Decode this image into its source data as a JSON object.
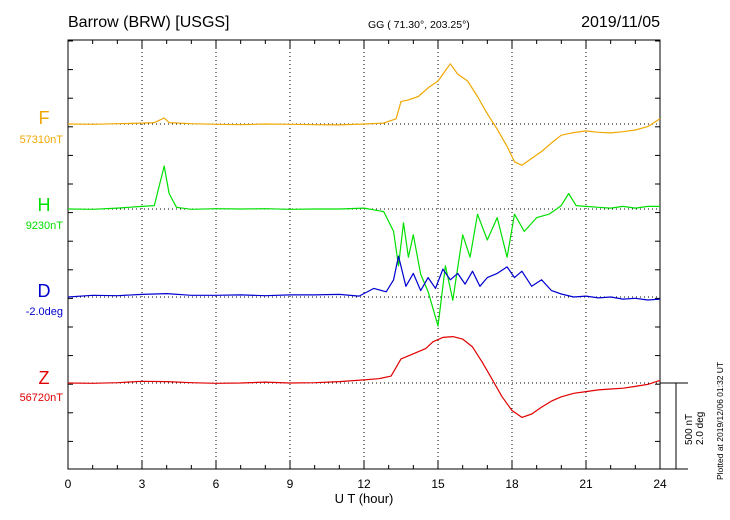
{
  "header": {
    "station": "Barrow (BRW)  [USGS]",
    "coords": "GG ( 71.30°, 203.25°)",
    "date": "2019/11/05"
  },
  "footer": {
    "plotted": "Plotted at 2019/12/06 01:32 UT",
    "scale_nt": "500 nT",
    "scale_deg": "2.0 deg"
  },
  "colors": {
    "F": "#f0a800",
    "H": "#00e000",
    "D": "#0000d0",
    "Z": "#e00000",
    "axis": "#000000",
    "grid": "#000000"
  },
  "chart_data": {
    "type": "line",
    "xlabel": "U T (hour)",
    "ylabel": "",
    "xlim": [
      0,
      24
    ],
    "xticks": [
      0,
      3,
      6,
      9,
      12,
      15,
      18,
      21,
      24
    ],
    "grid": true,
    "scale": {
      "nT_per_bar": 500,
      "deg_per_bar": 2.0
    },
    "series": [
      {
        "name": "F",
        "baseline_label": "57310nT",
        "unit": "nT",
        "baseline": 57310,
        "x": [
          0,
          1,
          2,
          3,
          3.5,
          3.9,
          4.1,
          5,
          6,
          7,
          8,
          9,
          10,
          11,
          12,
          12.8,
          13.3,
          13.5,
          13.8,
          14.2,
          14.6,
          15,
          15.2,
          15.5,
          15.8,
          16.2,
          16.6,
          17,
          17.4,
          17.8,
          18.1,
          18.4,
          18.8,
          19.2,
          19.6,
          20,
          20.5,
          21,
          21.5,
          22,
          22.5,
          23,
          23.5,
          24
        ],
        "y": [
          57310,
          57308,
          57312,
          57315,
          57318,
          57345,
          57318,
          57312,
          57308,
          57306,
          57310,
          57308,
          57306,
          57305,
          57310,
          57315,
          57340,
          57440,
          57450,
          57470,
          57520,
          57560,
          57600,
          57660,
          57600,
          57560,
          57470,
          57370,
          57280,
          57180,
          57090,
          57070,
          57110,
          57150,
          57200,
          57245,
          57260,
          57270,
          57262,
          57258,
          57265,
          57275,
          57295,
          57340
        ]
      },
      {
        "name": "H",
        "baseline_label": "9230nT",
        "unit": "nT",
        "baseline": 9230,
        "x": [
          0,
          1,
          2,
          3,
          3.5,
          3.9,
          4.1,
          4.4,
          5,
          6,
          7,
          8,
          9,
          10,
          11,
          12,
          12.8,
          13.2,
          13.4,
          13.6,
          13.8,
          14,
          14.3,
          14.6,
          14.8,
          15,
          15.3,
          15.6,
          16,
          16.3,
          16.6,
          17,
          17.4,
          17.8,
          18.1,
          18.5,
          19,
          19.5,
          20,
          20.3,
          20.6,
          21,
          21.5,
          22,
          22.5,
          23,
          23.5,
          24
        ],
        "y": [
          9230,
          9228,
          9235,
          9245,
          9250,
          9480,
          9320,
          9240,
          9228,
          9232,
          9230,
          9232,
          9228,
          9230,
          9230,
          9235,
          9215,
          9100,
          8900,
          9150,
          8950,
          9080,
          8850,
          8750,
          8650,
          8550,
          8900,
          8700,
          9080,
          8950,
          9200,
          9050,
          9180,
          8950,
          9200,
          9100,
          9180,
          9200,
          9250,
          9320,
          9250,
          9245,
          9240,
          9235,
          9245,
          9235,
          9245,
          9245
        ]
      },
      {
        "name": "D",
        "baseline_label": "-2.0deg",
        "unit": "deg",
        "baseline": -2.0,
        "x": [
          0,
          1,
          2,
          3,
          4,
          5,
          6,
          7,
          8,
          9,
          10,
          11,
          11.8,
          12.4,
          12.9,
          13.2,
          13.4,
          13.7,
          14,
          14.3,
          14.6,
          14.9,
          15.2,
          15.5,
          15.8,
          16.1,
          16.4,
          16.7,
          17,
          17.4,
          17.8,
          18.1,
          18.4,
          18.8,
          19.2,
          19.6,
          20,
          20.5,
          21,
          21.5,
          22,
          22.5,
          23,
          23.5,
          24
        ],
        "y": [
          -2.0,
          -1.96,
          -1.97,
          -1.94,
          -1.92,
          -1.96,
          -1.96,
          -1.95,
          -1.97,
          -1.95,
          -1.95,
          -1.94,
          -1.98,
          -1.8,
          -1.88,
          -1.6,
          -1.05,
          -1.75,
          -1.45,
          -1.85,
          -1.55,
          -1.8,
          -1.35,
          -1.6,
          -1.45,
          -1.7,
          -1.4,
          -1.75,
          -1.55,
          -1.45,
          -1.3,
          -1.55,
          -1.4,
          -1.75,
          -1.6,
          -1.85,
          -1.93,
          -2.0,
          -1.98,
          -2.02,
          -2.0,
          -2.05,
          -2.03,
          -2.07,
          -2.05
        ]
      },
      {
        "name": "Z",
        "baseline_label": "56720nT",
        "unit": "nT",
        "baseline": 56720,
        "x": [
          0,
          1,
          2,
          3,
          4,
          5,
          6,
          7,
          8,
          9,
          10,
          11,
          12,
          12.6,
          13.1,
          13.5,
          14,
          14.5,
          14.8,
          15.2,
          15.6,
          16,
          16.4,
          16.8,
          17.2,
          17.6,
          18,
          18.4,
          18.8,
          19.2,
          19.6,
          20,
          20.5,
          21,
          21.5,
          22,
          22.5,
          23,
          23.5,
          24
        ],
        "y": [
          56720,
          56718,
          56722,
          56730,
          56728,
          56722,
          56718,
          56720,
          56725,
          56720,
          56722,
          56728,
          56738,
          56745,
          56760,
          56860,
          56890,
          56920,
          56960,
          56985,
          56990,
          56975,
          56930,
          56840,
          56740,
          56640,
          56560,
          56520,
          56540,
          56580,
          56615,
          56640,
          56660,
          56670,
          56680,
          56685,
          56690,
          56700,
          56712,
          56735
        ]
      }
    ]
  }
}
